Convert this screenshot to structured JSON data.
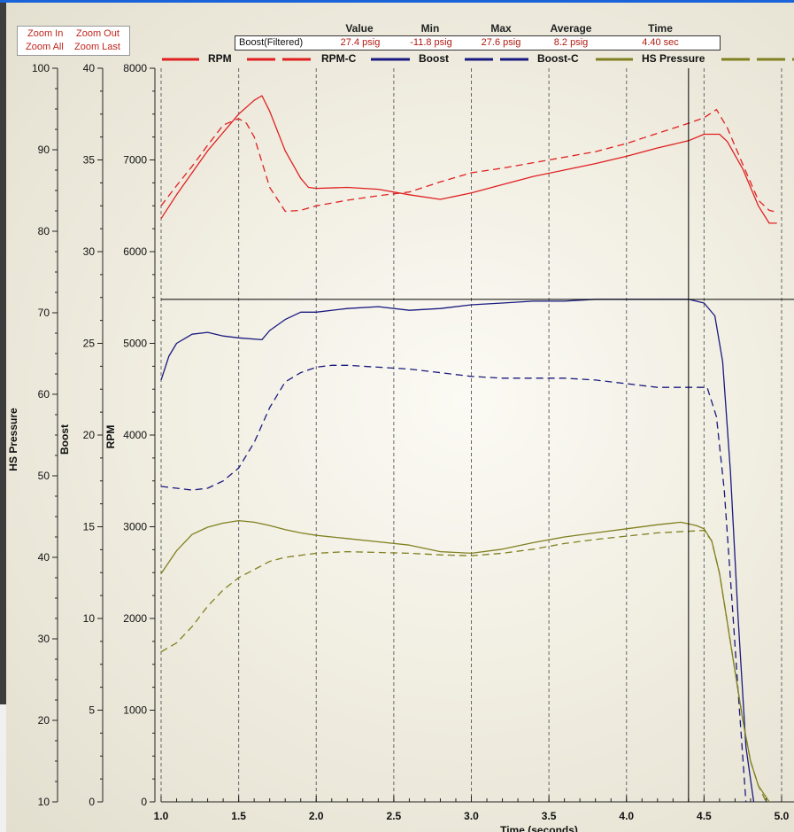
{
  "colors": {
    "rpm": "#e02020",
    "boost": "#1a1a80",
    "hs_pressure": "#808020",
    "cursor": "#000000",
    "grid": "#666666"
  },
  "zoom": {
    "zoom_in": "Zoom In",
    "zoom_out": "Zoom Out",
    "zoom_all": "Zoom All",
    "zoom_last": "Zoom Last"
  },
  "readout": {
    "headers": {
      "value": "Value",
      "min": "Min",
      "max": "Max",
      "average": "Average",
      "time": "Time"
    },
    "channel": "Boost(Filtered)",
    "value": "27.4 psig",
    "min": "-11.8 psig",
    "max": "27.6 psig",
    "average": "8.2 psig",
    "time": "4.40 sec"
  },
  "chart_data": {
    "type": "line",
    "xlabel": "Time (seconds)",
    "xlim": [
      1.0,
      5.0
    ],
    "x_ticks": [
      "1.0",
      "1.5",
      "2.0",
      "2.5",
      "3.0",
      "3.5",
      "4.0",
      "4.5",
      "5.0"
    ],
    "grid": "vertical dashed at each x tick",
    "cursor_x": 4.4,
    "cursor_boost": 27.4,
    "axes": [
      {
        "label": "HS Pressure",
        "range": [
          10,
          100
        ],
        "ticks": [
          "100",
          "90",
          "80",
          "70",
          "60",
          "50",
          "40",
          "30",
          "20",
          "10"
        ]
      },
      {
        "label": "Boost",
        "range": [
          0,
          40
        ],
        "ticks": [
          "40",
          "35",
          "30",
          "25",
          "20",
          "15",
          "10",
          "5",
          "0"
        ]
      },
      {
        "label": "RPM",
        "range": [
          0,
          8000
        ],
        "ticks": [
          "8000",
          "7000",
          "6000",
          "5000",
          "4000",
          "3000",
          "2000",
          "1000",
          "0"
        ]
      }
    ],
    "legend": [
      "RPM",
      "RPM-C",
      "Boost",
      "Boost-C",
      "HS Pressure"
    ],
    "series": [
      {
        "name": "RPM",
        "axis": "RPM",
        "style": "solid",
        "color": "#e02020",
        "x": [
          1.0,
          1.1,
          1.2,
          1.3,
          1.4,
          1.5,
          1.6,
          1.65,
          1.7,
          1.8,
          1.9,
          1.95,
          2.0,
          2.2,
          2.4,
          2.6,
          2.8,
          3.0,
          3.2,
          3.4,
          3.6,
          3.8,
          4.0,
          4.2,
          4.4,
          4.5,
          4.6,
          4.65,
          4.75,
          4.85,
          4.92,
          4.97
        ],
        "y": [
          6360,
          6620,
          6860,
          7100,
          7300,
          7500,
          7650,
          7700,
          7530,
          7100,
          6800,
          6700,
          6690,
          6700,
          6680,
          6620,
          6570,
          6640,
          6730,
          6820,
          6890,
          6960,
          7040,
          7130,
          7210,
          7280,
          7280,
          7200,
          6900,
          6500,
          6310,
          6310
        ]
      },
      {
        "name": "RPM-C",
        "axis": "RPM",
        "style": "dashed",
        "color": "#e02020",
        "x": [
          1.0,
          1.1,
          1.2,
          1.3,
          1.4,
          1.5,
          1.55,
          1.6,
          1.7,
          1.8,
          1.9,
          2.0,
          2.2,
          2.4,
          2.6,
          2.8,
          3.0,
          3.2,
          3.4,
          3.6,
          3.8,
          4.0,
          4.2,
          4.4,
          4.5,
          4.58,
          4.65,
          4.75,
          4.85,
          4.92,
          4.97
        ],
        "y": [
          6500,
          6720,
          6930,
          7160,
          7380,
          7450,
          7400,
          7250,
          6700,
          6440,
          6450,
          6500,
          6560,
          6610,
          6650,
          6760,
          6860,
          6910,
          6970,
          7030,
          7090,
          7180,
          7290,
          7400,
          7460,
          7550,
          7350,
          6950,
          6560,
          6450,
          6430
        ]
      },
      {
        "name": "Boost",
        "axis": "Boost",
        "style": "solid",
        "color": "#1a1a80",
        "x": [
          1.0,
          1.05,
          1.1,
          1.2,
          1.3,
          1.4,
          1.5,
          1.65,
          1.7,
          1.8,
          1.9,
          2.0,
          2.2,
          2.4,
          2.6,
          2.8,
          3.0,
          3.2,
          3.4,
          3.6,
          3.8,
          4.0,
          4.2,
          4.4,
          4.5,
          4.57,
          4.62,
          4.67,
          4.72,
          4.77,
          4.82
        ],
        "y": [
          23.0,
          24.3,
          25.0,
          25.5,
          25.6,
          25.4,
          25.3,
          25.2,
          25.7,
          26.3,
          26.7,
          26.7,
          26.9,
          27.0,
          26.8,
          26.9,
          27.1,
          27.2,
          27.3,
          27.3,
          27.4,
          27.4,
          27.4,
          27.4,
          27.2,
          26.5,
          24.0,
          18.0,
          10.0,
          3.0,
          0.0
        ]
      },
      {
        "name": "Boost-C",
        "axis": "Boost",
        "style": "dashed",
        "color": "#1a1a80",
        "x": [
          1.0,
          1.1,
          1.2,
          1.3,
          1.4,
          1.5,
          1.6,
          1.7,
          1.8,
          1.9,
          2.0,
          2.1,
          2.2,
          2.4,
          2.6,
          2.8,
          3.0,
          3.2,
          3.4,
          3.6,
          3.8,
          4.0,
          4.2,
          4.4,
          4.52,
          4.58,
          4.63,
          4.68,
          4.72,
          4.77
        ],
        "y": [
          17.2,
          17.1,
          17.0,
          17.1,
          17.5,
          18.2,
          19.6,
          21.5,
          22.9,
          23.4,
          23.7,
          23.8,
          23.8,
          23.7,
          23.6,
          23.4,
          23.2,
          23.1,
          23.1,
          23.1,
          23.0,
          22.8,
          22.6,
          22.6,
          22.6,
          21.0,
          17.0,
          11.0,
          6.0,
          0.0
        ]
      },
      {
        "name": "HS Pressure",
        "axis": "HS Pressure",
        "style": "solid",
        "color": "#808020",
        "x": [
          1.0,
          1.1,
          1.2,
          1.3,
          1.4,
          1.5,
          1.6,
          1.7,
          1.8,
          1.9,
          2.0,
          2.2,
          2.4,
          2.6,
          2.8,
          3.0,
          3.2,
          3.4,
          3.6,
          3.8,
          4.0,
          4.2,
          4.35,
          4.45,
          4.5,
          4.55,
          4.6,
          4.65,
          4.7,
          4.75,
          4.8,
          4.85,
          4.92
        ],
        "y": [
          38.0,
          40.8,
          42.8,
          43.7,
          44.2,
          44.5,
          44.3,
          43.9,
          43.4,
          43.0,
          42.7,
          42.3,
          41.9,
          41.5,
          40.7,
          40.5,
          41.0,
          41.8,
          42.5,
          43.0,
          43.5,
          44.0,
          44.3,
          43.9,
          43.5,
          42.0,
          38.0,
          32.0,
          26.0,
          20.0,
          15.0,
          12.0,
          10.0
        ]
      },
      {
        "name": "HS Pressure-C",
        "axis": "HS Pressure",
        "style": "dashed",
        "color": "#808020",
        "x": [
          1.0,
          1.1,
          1.2,
          1.3,
          1.4,
          1.5,
          1.6,
          1.7,
          1.8,
          2.0,
          2.2,
          2.4,
          2.6,
          2.8,
          3.0,
          3.2,
          3.4,
          3.6,
          3.8,
          4.0,
          4.2,
          4.4,
          4.5,
          4.55,
          4.6,
          4.65,
          4.7,
          4.75,
          4.8,
          4.85,
          4.9
        ],
        "y": [
          28.4,
          29.5,
          31.5,
          34.0,
          36.0,
          37.5,
          38.5,
          39.5,
          40.0,
          40.5,
          40.7,
          40.6,
          40.5,
          40.3,
          40.2,
          40.5,
          41.0,
          41.7,
          42.2,
          42.6,
          43.0,
          43.2,
          43.3,
          42.0,
          38.0,
          32.0,
          26.0,
          20.0,
          15.0,
          12.0,
          10.0
        ]
      }
    ]
  }
}
